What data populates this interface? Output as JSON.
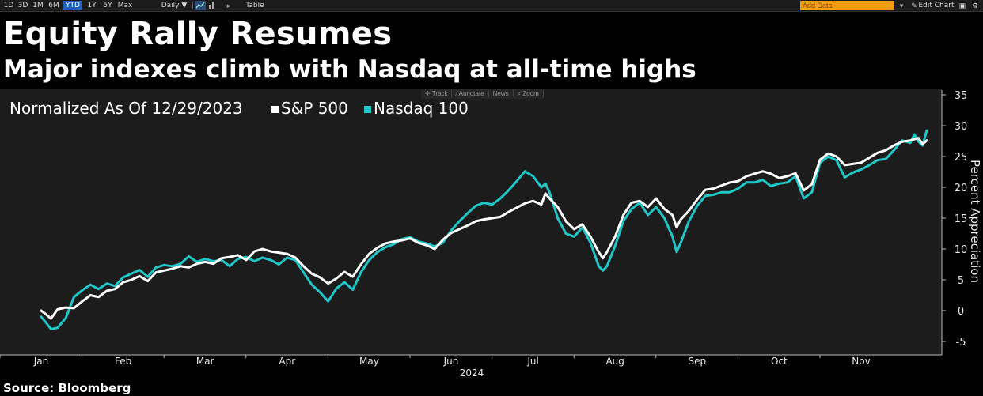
{
  "toolbar": {
    "ranges": [
      "1D",
      "3D",
      "1M",
      "6M",
      "YTD",
      "1Y",
      "5Y",
      "Max"
    ],
    "active_range": "YTD",
    "frequency": "Daily ▼",
    "table_label": "Table",
    "add_data_placeholder": "Add Data",
    "edit_chart_label": "Edit Chart"
  },
  "chart_tools": {
    "track": "Track",
    "annotate": "Annotate",
    "news": "News",
    "zoom": "Zoom"
  },
  "header": {
    "title": "Equity Rally Resumes",
    "subtitle": "Major indexes climb with Nasdaq at all-time highs"
  },
  "footer": {
    "source": "Source: Bloomberg"
  },
  "colors": {
    "sp500": "#ffffff",
    "nasdaq": "#1fc7c9",
    "background": "#000000",
    "plot": "#1c1c1c",
    "active_button": "#1f5fb8",
    "add_data": "#f39c12"
  },
  "chart_data": {
    "type": "line",
    "normalization_label": "Normalized As Of 12/29/2023",
    "ylabel": "Percent Appreciation",
    "xlabel": "2024",
    "x_ticks": [
      "Jan",
      "Feb",
      "Mar",
      "Apr",
      "May",
      "Jun",
      "Jul",
      "Aug",
      "Sep",
      "Oct",
      "Nov"
    ],
    "y_ticks": [
      -5,
      0,
      5,
      10,
      15,
      20,
      25,
      30,
      35
    ],
    "ylim": [
      -5,
      35
    ],
    "x_unit": "month index from Jan 1 2024",
    "xlim": [
      -0.15,
      10.85
    ],
    "y_axis_position": "right",
    "legend_position": "top-left",
    "series": [
      {
        "name": "S&P 500",
        "color": "#ffffff",
        "points": [
          [
            0.0,
            0.0
          ],
          [
            0.05,
            -0.5
          ],
          [
            0.12,
            -1.3
          ],
          [
            0.2,
            0.2
          ],
          [
            0.3,
            0.5
          ],
          [
            0.4,
            0.4
          ],
          [
            0.5,
            1.5
          ],
          [
            0.6,
            2.5
          ],
          [
            0.7,
            2.2
          ],
          [
            0.8,
            3.2
          ],
          [
            0.9,
            3.5
          ],
          [
            1.0,
            4.6
          ],
          [
            1.1,
            5.0
          ],
          [
            1.2,
            5.6
          ],
          [
            1.3,
            4.8
          ],
          [
            1.4,
            6.2
          ],
          [
            1.5,
            6.5
          ],
          [
            1.6,
            6.8
          ],
          [
            1.7,
            7.2
          ],
          [
            1.8,
            7.0
          ],
          [
            1.9,
            7.6
          ],
          [
            2.0,
            7.9
          ],
          [
            2.1,
            7.6
          ],
          [
            2.2,
            8.5
          ],
          [
            2.3,
            8.7
          ],
          [
            2.4,
            9.0
          ],
          [
            2.5,
            8.2
          ],
          [
            2.6,
            9.6
          ],
          [
            2.7,
            10.0
          ],
          [
            2.8,
            9.6
          ],
          [
            2.9,
            9.4
          ],
          [
            3.0,
            9.2
          ],
          [
            3.1,
            8.6
          ],
          [
            3.2,
            7.2
          ],
          [
            3.3,
            6.0
          ],
          [
            3.4,
            5.4
          ],
          [
            3.5,
            4.4
          ],
          [
            3.6,
            5.2
          ],
          [
            3.7,
            6.3
          ],
          [
            3.8,
            5.5
          ],
          [
            3.9,
            7.5
          ],
          [
            4.0,
            9.2
          ],
          [
            4.1,
            10.2
          ],
          [
            4.2,
            10.9
          ],
          [
            4.3,
            11.2
          ],
          [
            4.4,
            11.4
          ],
          [
            4.5,
            11.7
          ],
          [
            4.6,
            11.0
          ],
          [
            4.7,
            10.6
          ],
          [
            4.8,
            10.0
          ],
          [
            4.9,
            11.5
          ],
          [
            5.0,
            12.6
          ],
          [
            5.1,
            13.2
          ],
          [
            5.2,
            13.8
          ],
          [
            5.3,
            14.5
          ],
          [
            5.4,
            14.8
          ],
          [
            5.5,
            15.0
          ],
          [
            5.6,
            15.2
          ],
          [
            5.7,
            16.0
          ],
          [
            5.8,
            16.7
          ],
          [
            5.9,
            17.4
          ],
          [
            6.0,
            17.8
          ],
          [
            6.1,
            17.2
          ],
          [
            6.15,
            19.0
          ],
          [
            6.2,
            18.2
          ],
          [
            6.3,
            16.8
          ],
          [
            6.4,
            14.5
          ],
          [
            6.5,
            13.2
          ],
          [
            6.6,
            14.0
          ],
          [
            6.7,
            12.0
          ],
          [
            6.8,
            9.5
          ],
          [
            6.85,
            8.5
          ],
          [
            6.9,
            9.5
          ],
          [
            7.0,
            12.0
          ],
          [
            7.1,
            15.5
          ],
          [
            7.2,
            17.5
          ],
          [
            7.3,
            17.8
          ],
          [
            7.4,
            16.8
          ],
          [
            7.5,
            18.2
          ],
          [
            7.6,
            16.5
          ],
          [
            7.7,
            15.5
          ],
          [
            7.75,
            13.5
          ],
          [
            7.8,
            14.8
          ],
          [
            7.9,
            16.2
          ],
          [
            8.0,
            18.0
          ],
          [
            8.1,
            19.6
          ],
          [
            8.2,
            19.8
          ],
          [
            8.3,
            20.3
          ],
          [
            8.4,
            20.8
          ],
          [
            8.5,
            21.0
          ],
          [
            8.6,
            21.8
          ],
          [
            8.7,
            22.2
          ],
          [
            8.8,
            22.6
          ],
          [
            8.9,
            22.2
          ],
          [
            9.0,
            21.5
          ],
          [
            9.1,
            21.8
          ],
          [
            9.2,
            22.3
          ],
          [
            9.3,
            19.5
          ],
          [
            9.4,
            20.5
          ],
          [
            9.5,
            24.5
          ],
          [
            9.6,
            25.5
          ],
          [
            9.7,
            25.0
          ],
          [
            9.8,
            23.6
          ],
          [
            9.9,
            23.8
          ],
          [
            10.0,
            24.0
          ],
          [
            10.1,
            24.8
          ],
          [
            10.2,
            25.6
          ],
          [
            10.3,
            26.0
          ],
          [
            10.4,
            26.8
          ],
          [
            10.5,
            27.4
          ],
          [
            10.6,
            27.6
          ],
          [
            10.7,
            28.0
          ],
          [
            10.75,
            27.0
          ],
          [
            10.8,
            27.6
          ]
        ]
      },
      {
        "name": "Nasdaq 100",
        "color": "#1fc7c9",
        "points": [
          [
            0.0,
            -1.0
          ],
          [
            0.05,
            -1.8
          ],
          [
            0.12,
            -3.0
          ],
          [
            0.2,
            -2.8
          ],
          [
            0.3,
            -1.2
          ],
          [
            0.4,
            2.2
          ],
          [
            0.5,
            3.3
          ],
          [
            0.6,
            4.2
          ],
          [
            0.7,
            3.5
          ],
          [
            0.8,
            4.4
          ],
          [
            0.9,
            4.0
          ],
          [
            1.0,
            5.4
          ],
          [
            1.1,
            6.0
          ],
          [
            1.2,
            6.6
          ],
          [
            1.3,
            5.5
          ],
          [
            1.4,
            7.0
          ],
          [
            1.5,
            7.4
          ],
          [
            1.6,
            7.2
          ],
          [
            1.7,
            7.6
          ],
          [
            1.8,
            8.8
          ],
          [
            1.9,
            7.9
          ],
          [
            2.0,
            8.4
          ],
          [
            2.1,
            8.0
          ],
          [
            2.2,
            8.2
          ],
          [
            2.3,
            7.2
          ],
          [
            2.4,
            8.4
          ],
          [
            2.5,
            8.7
          ],
          [
            2.6,
            8.0
          ],
          [
            2.7,
            8.6
          ],
          [
            2.8,
            8.2
          ],
          [
            2.9,
            7.5
          ],
          [
            3.0,
            8.6
          ],
          [
            3.1,
            8.2
          ],
          [
            3.2,
            6.2
          ],
          [
            3.3,
            4.2
          ],
          [
            3.4,
            3.0
          ],
          [
            3.5,
            1.5
          ],
          [
            3.6,
            3.6
          ],
          [
            3.7,
            4.6
          ],
          [
            3.8,
            3.4
          ],
          [
            3.9,
            6.2
          ],
          [
            4.0,
            8.2
          ],
          [
            4.1,
            9.5
          ],
          [
            4.2,
            10.3
          ],
          [
            4.3,
            10.8
          ],
          [
            4.4,
            11.6
          ],
          [
            4.5,
            11.9
          ],
          [
            4.6,
            11.2
          ],
          [
            4.7,
            10.9
          ],
          [
            4.8,
            10.4
          ],
          [
            4.9,
            11.0
          ],
          [
            5.0,
            13.0
          ],
          [
            5.1,
            14.5
          ],
          [
            5.2,
            15.8
          ],
          [
            5.3,
            17.0
          ],
          [
            5.4,
            17.5
          ],
          [
            5.5,
            17.2
          ],
          [
            5.6,
            18.2
          ],
          [
            5.7,
            19.5
          ],
          [
            5.8,
            21.0
          ],
          [
            5.9,
            22.6
          ],
          [
            6.0,
            21.8
          ],
          [
            6.1,
            20.0
          ],
          [
            6.15,
            20.6
          ],
          [
            6.2,
            19.2
          ],
          [
            6.3,
            15.0
          ],
          [
            6.4,
            12.5
          ],
          [
            6.5,
            12.0
          ],
          [
            6.6,
            13.5
          ],
          [
            6.7,
            11.0
          ],
          [
            6.8,
            7.2
          ],
          [
            6.85,
            6.5
          ],
          [
            6.9,
            7.2
          ],
          [
            7.0,
            10.5
          ],
          [
            7.1,
            14.5
          ],
          [
            7.2,
            16.5
          ],
          [
            7.3,
            17.5
          ],
          [
            7.4,
            15.5
          ],
          [
            7.5,
            16.8
          ],
          [
            7.6,
            15.0
          ],
          [
            7.7,
            12.0
          ],
          [
            7.75,
            9.5
          ],
          [
            7.8,
            11.0
          ],
          [
            7.9,
            14.5
          ],
          [
            8.0,
            17.0
          ],
          [
            8.1,
            18.6
          ],
          [
            8.2,
            18.8
          ],
          [
            8.3,
            19.2
          ],
          [
            8.4,
            19.2
          ],
          [
            8.5,
            19.8
          ],
          [
            8.6,
            20.8
          ],
          [
            8.7,
            20.8
          ],
          [
            8.8,
            21.2
          ],
          [
            8.9,
            20.2
          ],
          [
            9.0,
            20.6
          ],
          [
            9.1,
            20.8
          ],
          [
            9.2,
            21.8
          ],
          [
            9.3,
            18.2
          ],
          [
            9.4,
            19.2
          ],
          [
            9.5,
            24.0
          ],
          [
            9.6,
            25.0
          ],
          [
            9.7,
            24.4
          ],
          [
            9.8,
            21.6
          ],
          [
            9.9,
            22.4
          ],
          [
            10.0,
            22.9
          ],
          [
            10.1,
            23.6
          ],
          [
            10.2,
            24.4
          ],
          [
            10.3,
            24.6
          ],
          [
            10.4,
            26.0
          ],
          [
            10.5,
            27.6
          ],
          [
            10.6,
            27.2
          ],
          [
            10.65,
            28.6
          ],
          [
            10.7,
            27.4
          ],
          [
            10.75,
            26.8
          ],
          [
            10.8,
            29.2
          ]
        ]
      }
    ]
  }
}
